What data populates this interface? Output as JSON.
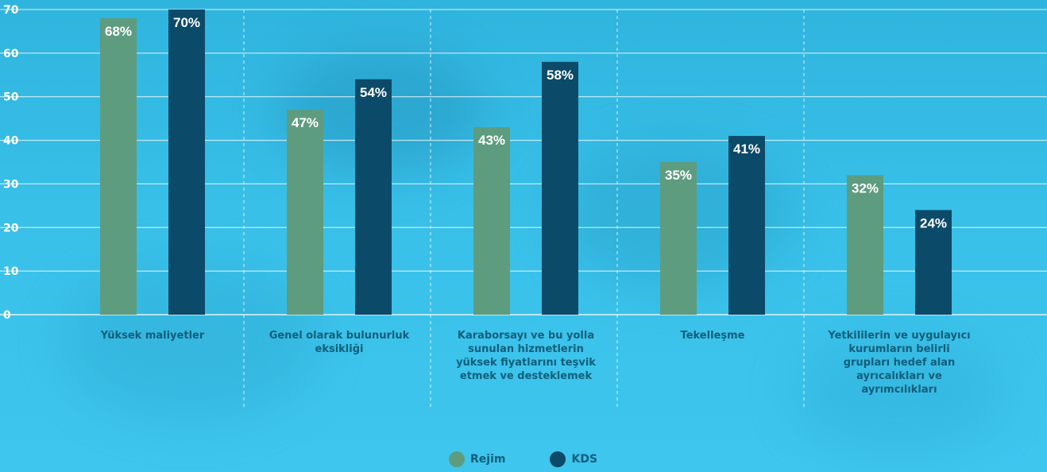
{
  "chart_data": {
    "type": "bar",
    "categories": [
      "Yüksek maliyetler",
      "Genel olarak bulunurluk eksikliği",
      "Karaborsayı ve bu yolla sunulan hizmetlerin yüksek fiyatlarını teşvik etmek ve desteklemek",
      "Tekelleşme",
      "Yetkililerin ve uygulayıcı kurumların belirli grupları hedef alan ayrıcalıkları ve ayrımcılıkları"
    ],
    "category_lines": [
      [
        "Yüksek maliyetler"
      ],
      [
        "Genel olarak bulunurluk",
        "eksikliği"
      ],
      [
        "Karaborsayı ve bu yolla",
        "sunulan hizmetlerin",
        "yüksek fiyatlarını teşvik",
        "etmek ve desteklemek"
      ],
      [
        "Tekelleşme"
      ],
      [
        "Yetkililerin ve uygulayıcı",
        "kurumların belirli",
        "grupları hedef alan",
        "ayrıcalıkları ve",
        "ayrımcılıkları"
      ]
    ],
    "series": [
      {
        "name": "Rejim",
        "color": "#5e9c80",
        "values": [
          68,
          47,
          43,
          35,
          32
        ],
        "labels": [
          "68%",
          "47%",
          "43%",
          "35%",
          "32%"
        ]
      },
      {
        "name": "KDS",
        "color": "#0c4a69",
        "values": [
          70,
          54,
          58,
          41,
          24
        ],
        "labels": [
          "70%",
          "54%",
          "58%",
          "41%",
          "24%"
        ]
      }
    ],
    "y_ticks": [
      "0",
      "10",
      "20",
      "30",
      "40",
      "50",
      "60",
      "70"
    ],
    "ylim": [
      0,
      70
    ],
    "grid": true,
    "legend_position": "bottom-center",
    "title": "",
    "xlabel": "",
    "ylabel": ""
  },
  "legend": {
    "rejim_label": "Rejim",
    "kds_label": "KDS"
  }
}
